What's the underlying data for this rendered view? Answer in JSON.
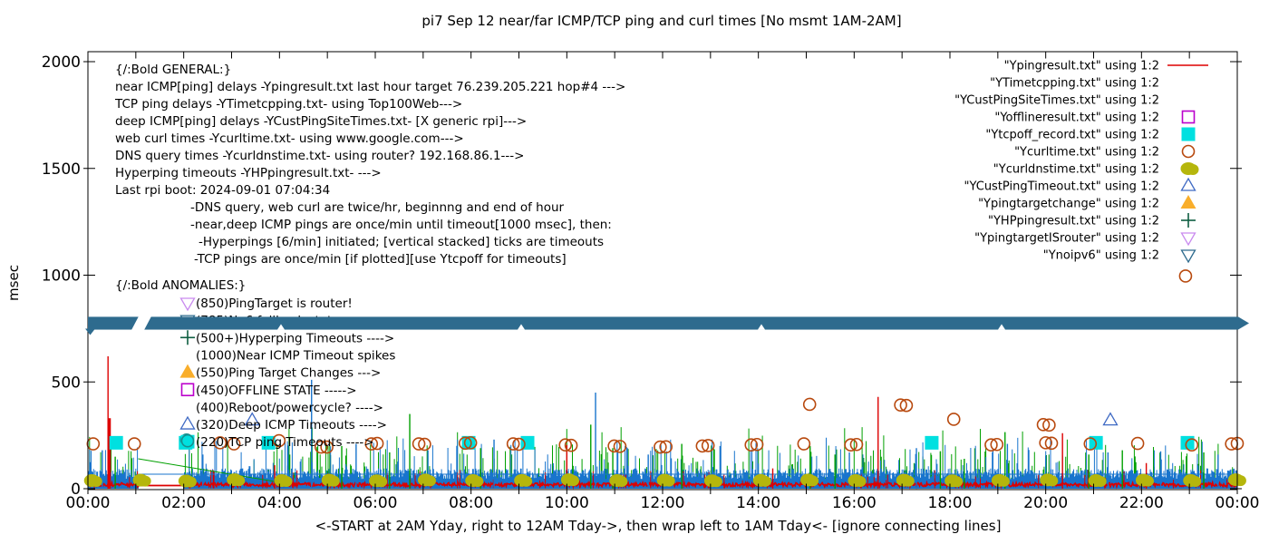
{
  "title": "pi7 Sep 12  near/far ICMP/TCP ping and curl times [No msmt 1AM-2AM]",
  "axes": {
    "y_label": "msec",
    "x_label": "<-START at 2AM Yday, right to 12AM Tday->, then wrap left to 1AM Tday<- [ignore connecting lines]"
  },
  "annotations": {
    "general_header": "{/:Bold GENERAL:}",
    "general": [
      {
        "text": "near ICMP[ping] delays -Ypingresult.txt last hour target 76.239.205.221 hop#4 --->",
        "indent": 0
      },
      {
        "text": "TCP ping delays -YTimetcpping.txt- using Top100Web--->",
        "indent": 0
      },
      {
        "text": "deep ICMP[ping] delays -YCustPingSiteTimes.txt- [X generic rpi]--->",
        "indent": 0
      },
      {
        "text": "web curl times -Ycurltime.txt- using www.google.com--->",
        "indent": 0
      },
      {
        "text": "DNS query times -Ycurldnstime.txt- using router? 192.168.86.1--->",
        "indent": 0
      },
      {
        "text": "Hyperping timeouts -YHPpingresult.txt- --->",
        "indent": 0
      },
      {
        "text": "Last rpi boot: 2024-09-01 07:04:34",
        "indent": 0
      },
      {
        "text": "-DNS query, web curl are twice/hr, beginnng and end of hour",
        "indent": 83
      },
      {
        "text": "-near,deep ICMP pings are once/min until timeout[1000 msec], then:",
        "indent": 83
      },
      {
        "text": "-Hyperpings [6/min] initiated; [vertical stacked] ticks are timeouts",
        "indent": 92
      },
      {
        "text": "-TCP pings are once/min [if plotted][use Ytcpoff for timeouts]",
        "indent": 87
      }
    ],
    "anomalies_header": "{/:Bold ANOMALIES:}",
    "anomalies": [
      {
        "marker": "triangle-down-open",
        "color": "#c98bef",
        "text": "(850)PingTarget is router!"
      },
      {
        "marker": "triangle-down-open",
        "color": "#2e6b8e",
        "text": "(785)No6 fallback state",
        "obscured": true
      },
      {
        "marker": "plus",
        "color": "#0e5e41",
        "text": "(500+)Hyperping Timeouts ---->"
      },
      {
        "marker": null,
        "color": null,
        "text": "(1000)Near ICMP Timeout spikes"
      },
      {
        "marker": "triangle-up-filled",
        "color": "#f9ae2b",
        "text": "(550)Ping Target Changes --->"
      },
      {
        "marker": "square-open",
        "color": "#bb00cc",
        "text": "(450)OFFLINE STATE ----->"
      },
      {
        "marker": null,
        "color": null,
        "text": "(400)Reboot/powercycle? ---->"
      },
      {
        "marker": "triangle-up-open",
        "color": "#3f6ac4",
        "text": "(320)Deep ICMP Timeouts ---->"
      },
      {
        "marker": "square-filled",
        "color": "#00e0e0",
        "text": "(220)TCP ping Timeouts ---->",
        "extra_marker": {
          "style": "circle-open",
          "color": "#178f8f"
        }
      }
    ]
  },
  "chart_data": {
    "type": "line",
    "x": {
      "unit": "hours",
      "range": [
        0,
        24
      ],
      "tick_labels": [
        "00:00",
        "02:00",
        "04:00",
        "06:00",
        "08:00",
        "10:00",
        "12:00",
        "14:00",
        "16:00",
        "18:00",
        "20:00",
        "22:00",
        "00:00"
      ]
    },
    "y": {
      "unit": "msec",
      "range": [
        0,
        2000
      ],
      "ticks": [
        0,
        500,
        1000,
        1500,
        2000
      ]
    },
    "noise_seed": 42,
    "series": [
      {
        "name": "\"Ypingresult.txt\" using 1:2",
        "style": "line",
        "color": "#dd0000",
        "baseline_msec": [
          10,
          28
        ],
        "spikes": [
          [
            0.42,
            620
          ],
          [
            0.45,
            330
          ],
          [
            3.9,
            110
          ],
          [
            10.0,
            205
          ],
          [
            14.3,
            95
          ],
          [
            16.5,
            430
          ],
          [
            20.35,
            260
          ],
          [
            22.1,
            120
          ]
        ]
      },
      {
        "name": "\"YTimetcpping.txt\" using 1:2",
        "style": "impulse-noise",
        "color": "#00a000",
        "baseline_msec": [
          3,
          55
        ],
        "spikes": [
          [
            0.57,
            150
          ],
          [
            5.3,
            200
          ],
          [
            6.3,
            170
          ],
          [
            6.72,
            350
          ],
          [
            8.2,
            190
          ],
          [
            10.5,
            300
          ],
          [
            10.96,
            190
          ],
          [
            12.4,
            210
          ],
          [
            15.08,
            200
          ],
          [
            15.6,
            160
          ],
          [
            17.8,
            175
          ],
          [
            18.3,
            140
          ],
          [
            19.15,
            265
          ],
          [
            20.9,
            160
          ],
          [
            21.6,
            180
          ],
          [
            23.3,
            170
          ]
        ]
      },
      {
        "name": "\"YCustPingSiteTimes.txt\" using 1:2",
        "style": "impulse-noise",
        "color": "#1874cd",
        "baseline_msec": [
          45,
          95
        ],
        "spikes": [
          [
            0.3,
            180
          ],
          [
            2.4,
            160
          ],
          [
            4.67,
            510
          ],
          [
            5.6,
            210
          ],
          [
            7.1,
            180
          ],
          [
            8.48,
            230
          ],
          [
            10.6,
            450
          ],
          [
            11.7,
            160
          ],
          [
            13.2,
            200
          ],
          [
            15.9,
            170
          ],
          [
            17.3,
            190
          ],
          [
            19.2,
            210
          ],
          [
            20.0,
            155
          ],
          [
            21.3,
            170
          ],
          [
            22.4,
            175
          ],
          [
            23.6,
            160
          ]
        ]
      },
      {
        "name": "\"Yofflineresult.txt\" using 1:2",
        "style": "square-open",
        "color": "#bb00cc",
        "points": []
      },
      {
        "name": "\"Ytcpoff_record.txt\" using 1:2",
        "style": "square-filled",
        "color": "#00e0e0",
        "points": [
          [
            0.59,
            215
          ],
          [
            2.04,
            215
          ],
          [
            3.77,
            215
          ],
          [
            7.95,
            215
          ],
          [
            9.18,
            215
          ],
          [
            17.62,
            215
          ],
          [
            21.05,
            215
          ],
          [
            22.96,
            215
          ]
        ]
      },
      {
        "name": "\"Ycurltime.txt\" using 1:2",
        "style": "circle-open",
        "color": "#b8490e",
        "points": [
          [
            0.11,
            210
          ],
          [
            0.97,
            210
          ],
          [
            2.76,
            215
          ],
          [
            3.05,
            210
          ],
          [
            3.99,
            225
          ],
          [
            4.87,
            195
          ],
          [
            4.99,
            195
          ],
          [
            5.92,
            210
          ],
          [
            6.04,
            212
          ],
          [
            6.91,
            210
          ],
          [
            7.03,
            208
          ],
          [
            7.88,
            213
          ],
          [
            7.99,
            215
          ],
          [
            8.88,
            210
          ],
          [
            9.0,
            208
          ],
          [
            9.97,
            205
          ],
          [
            10.09,
            203
          ],
          [
            10.99,
            200
          ],
          [
            11.11,
            198
          ],
          [
            11.95,
            195
          ],
          [
            12.07,
            196
          ],
          [
            12.83,
            200
          ],
          [
            12.95,
            202
          ],
          [
            13.85,
            205
          ],
          [
            13.97,
            207
          ],
          [
            14.95,
            210
          ],
          [
            15.07,
            395
          ],
          [
            15.93,
            205
          ],
          [
            16.05,
            207
          ],
          [
            16.97,
            392
          ],
          [
            17.09,
            390
          ],
          [
            18.08,
            325
          ],
          [
            18.86,
            205
          ],
          [
            18.98,
            207
          ],
          [
            19.95,
            300
          ],
          [
            20.07,
            298
          ],
          [
            20.0,
            215
          ],
          [
            20.12,
            213
          ],
          [
            20.93,
            210
          ],
          [
            21.92,
            212
          ],
          [
            22.92,
            996
          ],
          [
            23.05,
            205
          ],
          [
            23.88,
            210
          ],
          [
            24.0,
            212
          ]
        ]
      },
      {
        "name": "\"Ycurldnstime.txt\" using 1:2",
        "style": "circle-filled",
        "color": "#b5b60c",
        "points": [
          [
            0.08,
            38
          ],
          [
            1.1,
            40
          ],
          [
            2.05,
            36
          ],
          [
            3.06,
            42
          ],
          [
            4.05,
            38
          ],
          [
            5.04,
            40
          ],
          [
            6.03,
            37
          ],
          [
            7.05,
            41
          ],
          [
            8.04,
            38
          ],
          [
            9.06,
            39
          ],
          [
            10.04,
            42
          ],
          [
            11.05,
            38
          ],
          [
            12.04,
            40
          ],
          [
            13.03,
            37
          ],
          [
            14.05,
            39
          ],
          [
            15.04,
            41
          ],
          [
            16.03,
            38
          ],
          [
            17.04,
            40
          ],
          [
            18.05,
            37
          ],
          [
            19.03,
            39
          ],
          [
            20.04,
            41
          ],
          [
            21.05,
            38
          ],
          [
            22.04,
            40
          ],
          [
            23.03,
            38
          ],
          [
            23.97,
            42
          ]
        ]
      },
      {
        "name": "\"YCustPingTimeout.txt\" using 1:2",
        "style": "triangle-up-open",
        "color": "#3f6ac4",
        "points": [
          [
            3.43,
            320
          ],
          [
            21.35,
            320
          ]
        ]
      },
      {
        "name": "\"Ypingtargetchange\" using 1:2",
        "style": "triangle-up-filled",
        "color": "#f9ae2b",
        "points": []
      },
      {
        "name": "\"YHPpingresult.txt\" using 1:2",
        "style": "plus",
        "color": "#0e5e41",
        "points": []
      },
      {
        "name": "\"YpingtargetISrouter\" using 1:2",
        "style": "triangle-down-open",
        "color": "#c98bef",
        "points": []
      },
      {
        "name": "\"Ynoipv6\" using 1:2",
        "style": "triangle-down-open",
        "color": "#2e6b8e",
        "band": {
          "from_msec": 745,
          "to_msec": 805,
          "full_width": true
        }
      }
    ],
    "extra_points": {
      "teal_circle": [
        [
          2.06,
          228
        ]
      ]
    },
    "artifacts": {
      "gap_hours": [
        1.05,
        2.0
      ],
      "green_diagonal": [
        [
          1.05,
          140
        ],
        [
          4.0,
          30
        ]
      ],
      "blue_flat": [
        [
          1.05,
          68
        ],
        [
          24,
          68
        ]
      ]
    }
  }
}
